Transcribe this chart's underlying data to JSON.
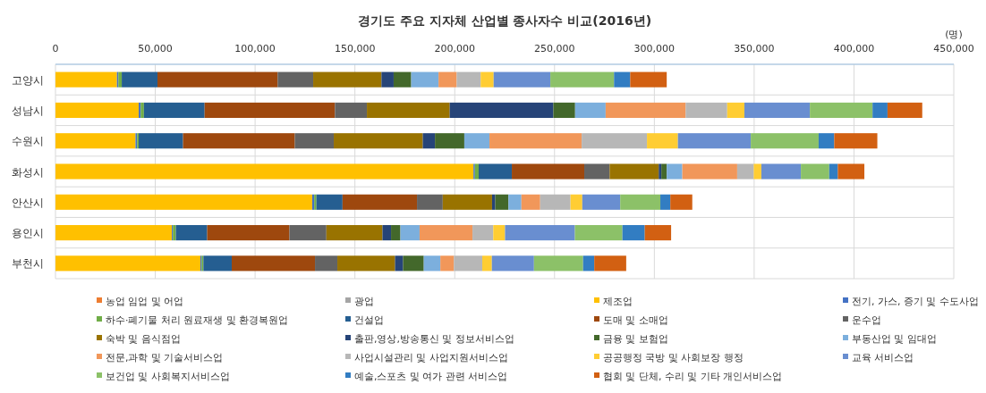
{
  "chart_data": {
    "type": "bar",
    "orientation": "horizontal",
    "stacked": true,
    "title": "경기도 주요 지자체 산업별 종사자수 비교(2016년)",
    "annotations": [
      "(명)"
    ],
    "categories": [
      "고양시",
      "성남시",
      "수원시",
      "화성시",
      "안산시",
      "용인시",
      "부천시"
    ],
    "xlim": [
      0,
      450000
    ],
    "xticks": [
      {
        "value": 0,
        "label": "0"
      },
      {
        "value": 50000,
        "label": "50,000"
      },
      {
        "value": 100000,
        "label": "100,000"
      },
      {
        "value": 150000,
        "label": "150,000"
      },
      {
        "value": 200000,
        "label": "200,000"
      },
      {
        "value": 250000,
        "label": "250,000"
      },
      {
        "value": 300000,
        "label": "300,000"
      },
      {
        "value": 350000,
        "label": "350,000"
      },
      {
        "value": 400000,
        "label": "400,000"
      },
      {
        "value": 450000,
        "label": "450,000"
      }
    ],
    "grid": true,
    "legend": "bottom",
    "series": [
      {
        "name": "농업 임업 및 어업",
        "color": "#ed7d31",
        "values": [
          0,
          0,
          0,
          0,
          0,
          0,
          0
        ]
      },
      {
        "name": "광업",
        "color": "#a5a5a5",
        "values": [
          0,
          0,
          0,
          0,
          0,
          0,
          0
        ]
      },
      {
        "name": "제조업",
        "color": "#ffc000",
        "values": [
          30800,
          41700,
          40100,
          209400,
          128600,
          58300,
          72600
        ]
      },
      {
        "name": "전기, 가스, 증기 및 수도사업",
        "color": "#4472c4",
        "values": [
          700,
          1000,
          800,
          700,
          1000,
          500,
          600
        ]
      },
      {
        "name": "하수·폐기물 처리 원료재생 및 환경복원업",
        "color": "#70ad47",
        "values": [
          1700,
          1600,
          800,
          1900,
          1100,
          1500,
          900
        ]
      },
      {
        "name": "건설업",
        "color": "#255e91",
        "values": [
          17900,
          30400,
          22200,
          16600,
          13100,
          15700,
          14200
        ]
      },
      {
        "name": "도매 및 소매업",
        "color": "#9e480e",
        "values": [
          60200,
          65300,
          56000,
          36300,
          37300,
          41200,
          41700
        ]
      },
      {
        "name": "운수업",
        "color": "#636363",
        "values": [
          17800,
          16000,
          19500,
          12700,
          12900,
          18500,
          11200
        ]
      },
      {
        "name": "숙박 및 음식점업",
        "color": "#997300",
        "values": [
          34200,
          41500,
          44600,
          24600,
          24700,
          28100,
          28900
        ]
      },
      {
        "name": "출판,영상,방송통신 및 정보서비스업",
        "color": "#264478",
        "values": [
          6100,
          51900,
          6100,
          1300,
          1600,
          4300,
          4000
        ]
      },
      {
        "name": "금융 및 보험업",
        "color": "#43682b",
        "values": [
          8800,
          10900,
          14700,
          2700,
          6600,
          4700,
          10400
        ]
      },
      {
        "name": "부동산업 및 임대업",
        "color": "#7cafdd",
        "values": [
          13700,
          15300,
          12600,
          7800,
          6500,
          9600,
          8300
        ]
      },
      {
        "name": "전문,과학 및 기술서비스업",
        "color": "#f1975a",
        "values": [
          9100,
          40100,
          46200,
          27500,
          9400,
          26500,
          6800
        ]
      },
      {
        "name": "사업시설관리 및 사업지원서비스업",
        "color": "#b7b7b7",
        "values": [
          12000,
          20800,
          32700,
          8300,
          15200,
          10400,
          14200
        ]
      },
      {
        "name": "공공행정 국방 및 사회보장 행정",
        "color": "#ffcd33",
        "values": [
          6500,
          8600,
          15500,
          3800,
          5900,
          5900,
          4800
        ]
      },
      {
        "name": "교육 서비스업",
        "color": "#698ed0",
        "values": [
          28400,
          32800,
          36500,
          19800,
          19000,
          35000,
          21100
        ]
      },
      {
        "name": "보건업 및 사회복지서비스업",
        "color": "#8cc168",
        "values": [
          31900,
          31400,
          34000,
          14200,
          20100,
          23800,
          24600
        ]
      },
      {
        "name": "예술,스포츠 및 여가 관련 서비스업",
        "color": "#327dc2",
        "values": [
          8100,
          7500,
          7800,
          4300,
          5000,
          11200,
          5600
        ]
      },
      {
        "name": "협회 및 단체, 수리 및 기타 개인서비스업",
        "color": "#d26012",
        "values": [
          18300,
          17400,
          21600,
          13300,
          11000,
          13200,
          16000
        ]
      }
    ]
  }
}
